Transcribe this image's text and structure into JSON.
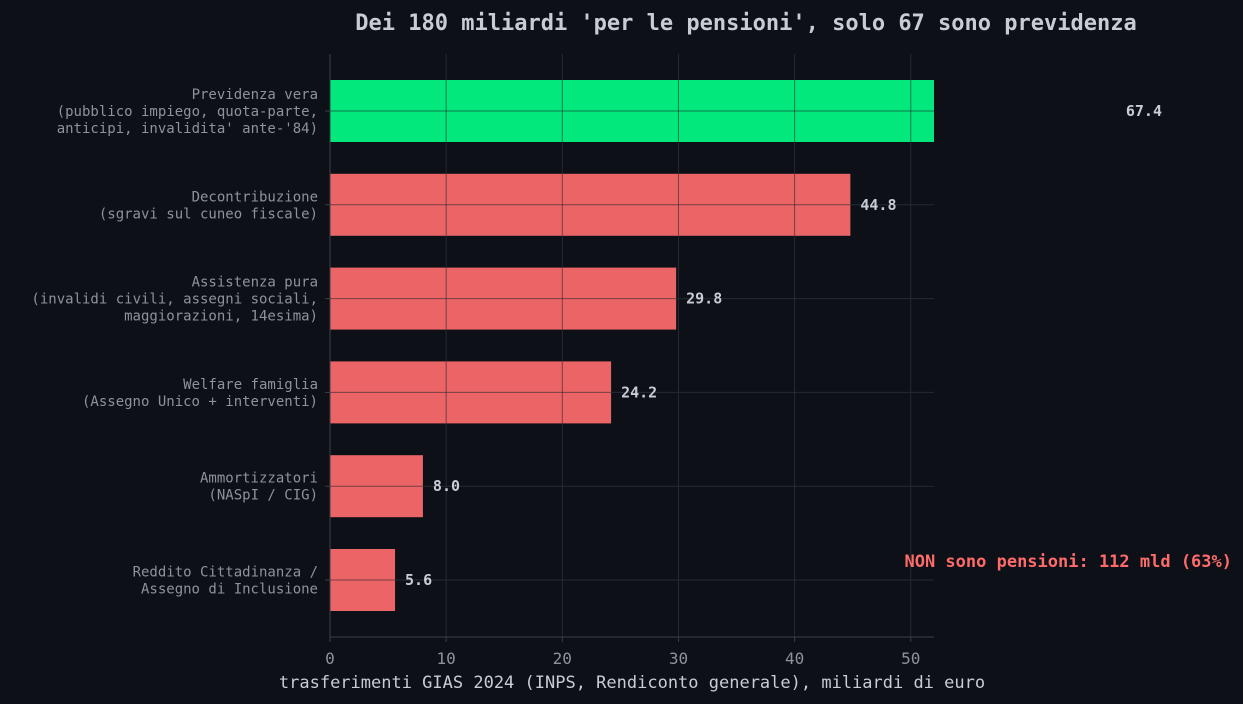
{
  "colors": {
    "background": "#0d1017",
    "highlight": "#02e87c",
    "bar": "#eb6566",
    "annotation": "#ff6b6b",
    "title": "#c9ccd6",
    "text": "#8e929c",
    "grid": "#252a33",
    "axis": "#3a3f48"
  },
  "chart_data": {
    "type": "bar",
    "orientation": "horizontal",
    "title": "Dei 180 miliardi 'per le pensioni', solo 67 sono previdenza",
    "xlabel": "trasferimenti GIAS 2024 (INPS, Rendiconto generale), miliardi di euro",
    "ylabel": "",
    "xlim": [
      0,
      52
    ],
    "xticks": [
      0,
      10,
      20,
      30,
      40,
      50
    ],
    "grid": true,
    "categories": [
      [
        "Previdenza vera",
        "(pubblico impiego, quota-parte,",
        "anticipi, invalidita' ante-'84)"
      ],
      [
        "Decontribuzione",
        "(sgravi sul cuneo fiscale)"
      ],
      [
        "Assistenza pura",
        "(invalidi civili, assegni sociali,",
        "maggiorazioni, 14esima)"
      ],
      [
        "Welfare famiglia",
        "(Assegno Unico + interventi)"
      ],
      [
        "Ammortizzatori",
        "(NASpI / CIG)"
      ],
      [
        "Reddito Cittadinanza /",
        "Assegno di Inclusione"
      ]
    ],
    "values": [
      67.4,
      44.8,
      29.8,
      24.2,
      8.0,
      5.6
    ],
    "value_labels": [
      "67.4",
      "44.8",
      "29.8",
      "24.2",
      "8.0",
      "5.6"
    ],
    "highlight_index": 0,
    "annotation": "NON sono pensioni:  112 mld (63%)"
  }
}
